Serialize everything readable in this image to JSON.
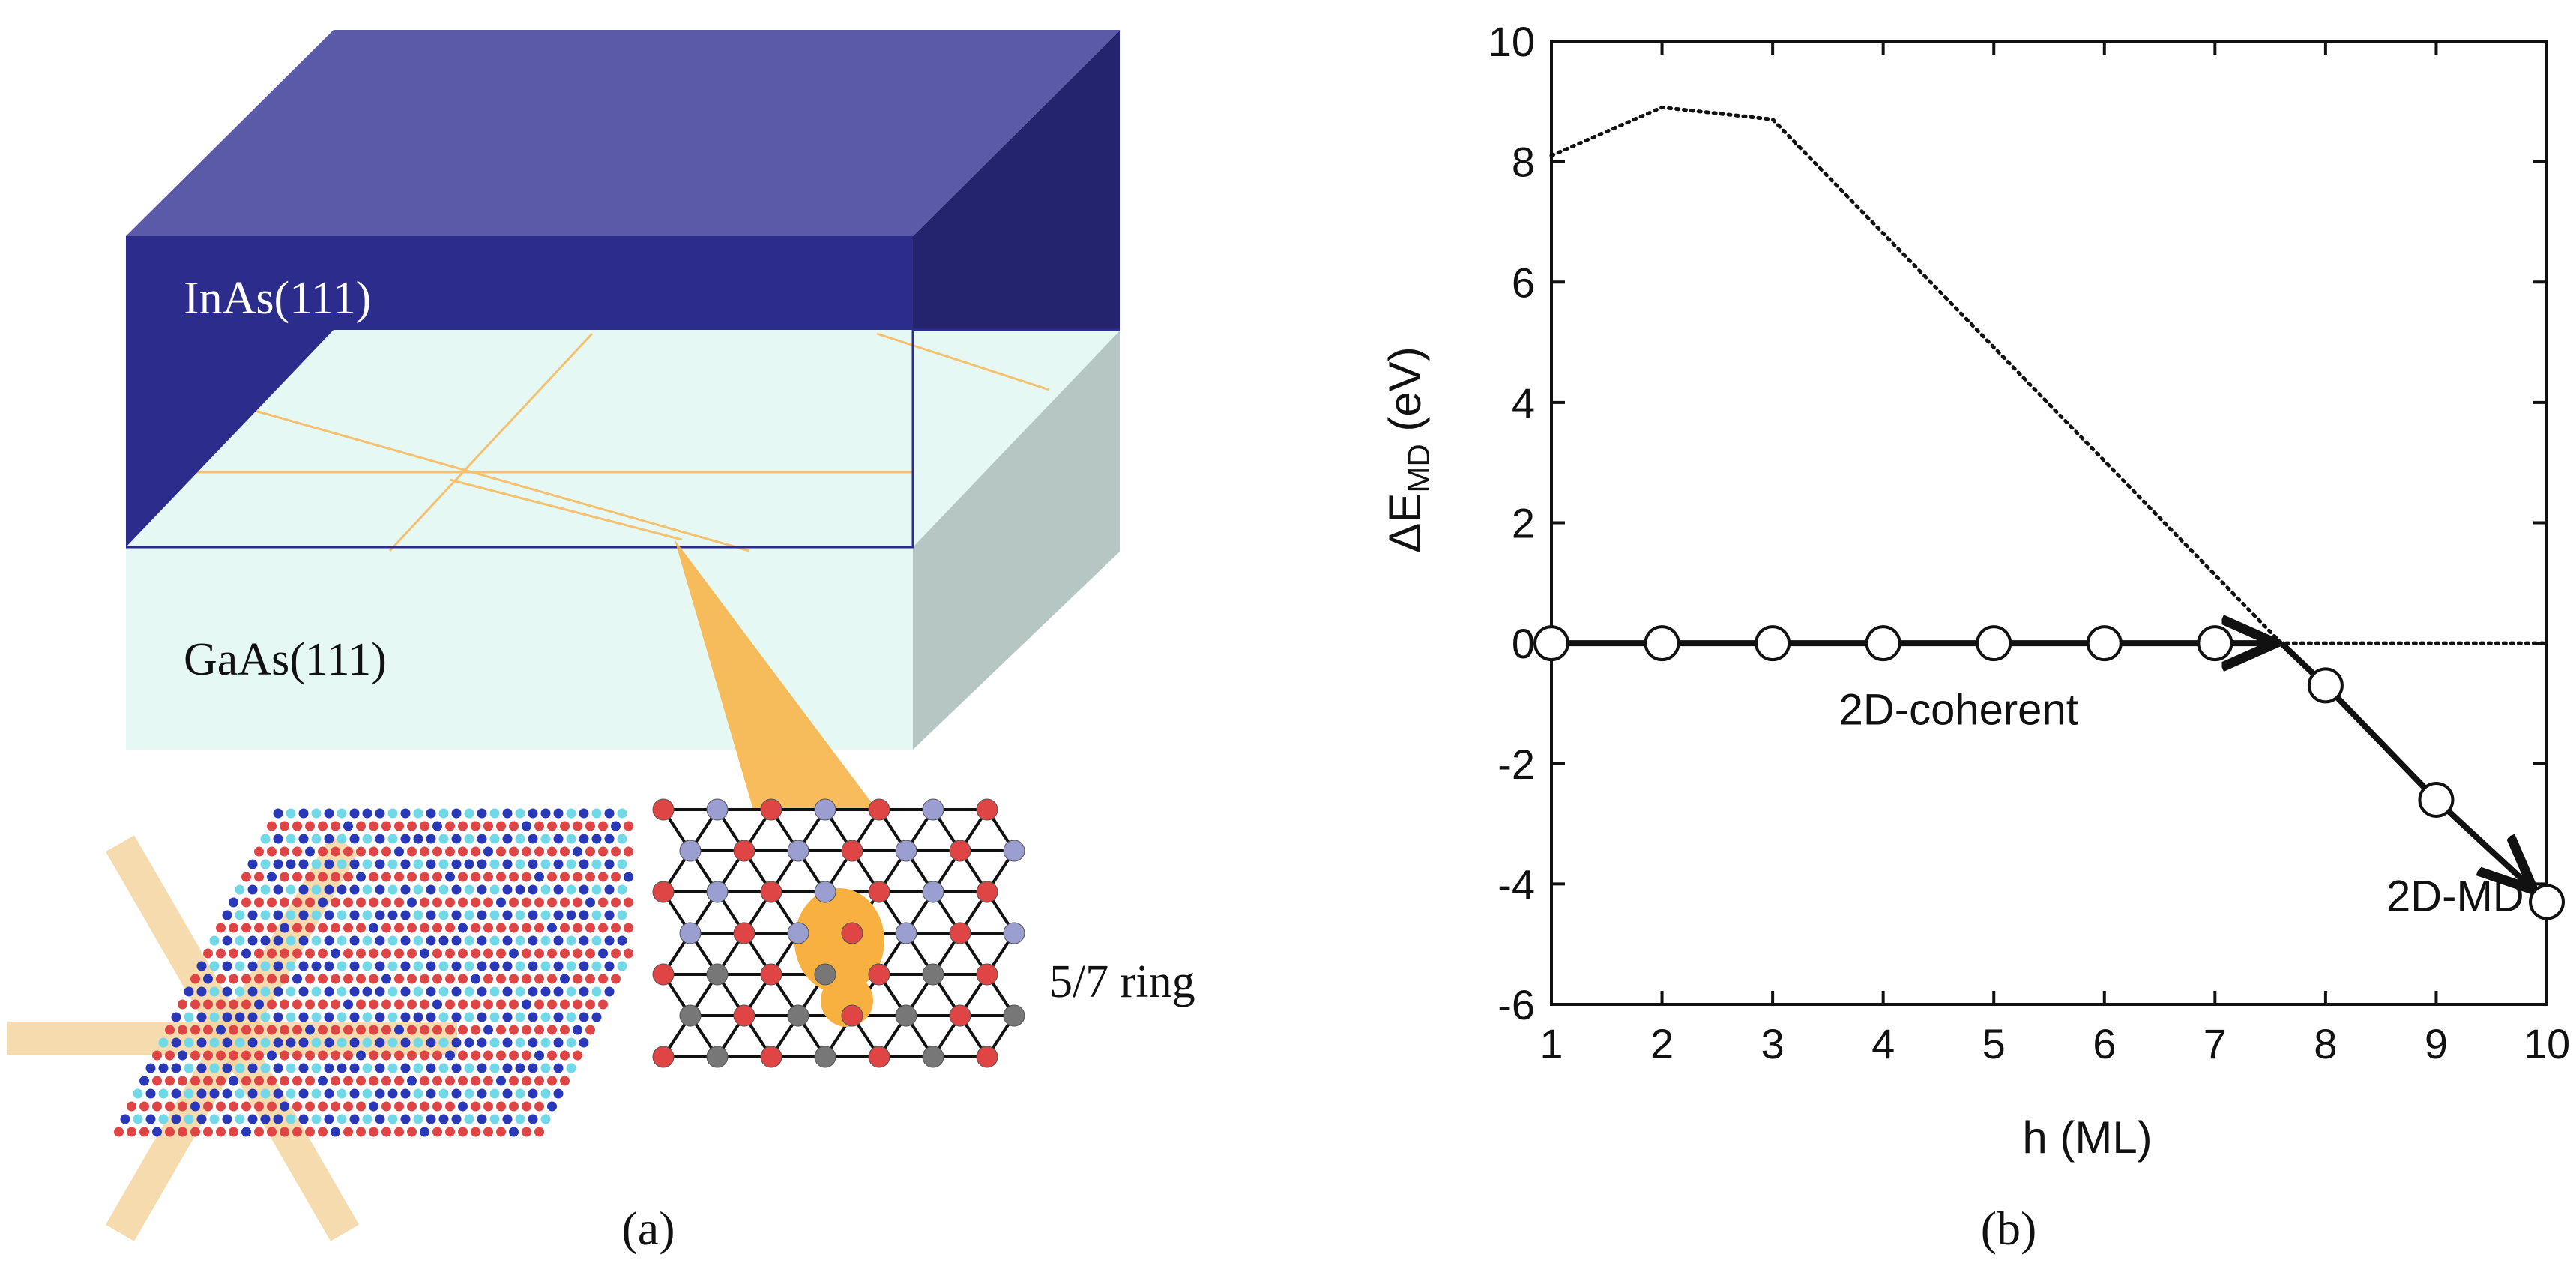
{
  "panel_a": {
    "top_layer_label": "InAs(111)",
    "substrate_label": "GaAs(111)",
    "ring_label": "5/7 ring",
    "caption": "(a)",
    "colors": {
      "inas_top": "#5a5aa8",
      "inas_front": "#2c2c8c",
      "inas_side": "#24246e",
      "gaas_front": "#e6f8f4",
      "gaas_side": "#b6c6c2",
      "dislocation": "#f5c070",
      "highlight": "#f8b040",
      "atom_red": "#e04545",
      "atom_blue": "#2838b8",
      "atom_cyan": "#70d8e6",
      "atom_lavender": "#9b9ed0",
      "atom_gray": "#777777"
    }
  },
  "panel_b": {
    "caption": "(b)",
    "chart_data": {
      "type": "line",
      "xlabel": "h (ML)",
      "ylabel": "ΔE",
      "ylabel_sub": "MD",
      "ylabel_unit": " (eV)",
      "xlim": [
        1,
        10
      ],
      "ylim": [
        -6,
        10
      ],
      "xticks": [
        1,
        2,
        3,
        4,
        5,
        6,
        7,
        8,
        9,
        10
      ],
      "yticks": [
        10,
        8,
        6,
        4,
        2,
        0,
        -2,
        -4,
        -6
      ],
      "grid": false,
      "series": [
        {
          "style": "solid-markers",
          "x": [
            1,
            2,
            3,
            4,
            5,
            6,
            7,
            8,
            9,
            10
          ],
          "y": [
            0,
            0,
            0,
            0,
            0,
            0,
            0,
            -0.7,
            -2.6,
            -4.3
          ]
        },
        {
          "style": "dotted",
          "x": [
            1,
            2,
            3,
            7.6,
            10
          ],
          "y": [
            8.1,
            8.9,
            8.7,
            0,
            0
          ]
        }
      ],
      "annotations": [
        {
          "text": "2D-coherent",
          "x": 3.6,
          "y": -1.1
        },
        {
          "text": "2D-MD",
          "x": 8.55,
          "y": -4.2
        }
      ]
    }
  }
}
